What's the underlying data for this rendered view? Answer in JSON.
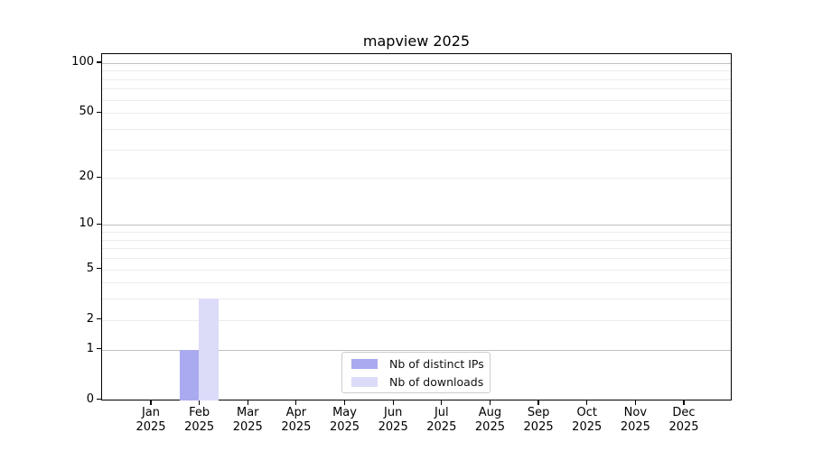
{
  "chart_data": {
    "type": "bar",
    "title": "mapview 2025",
    "categories": [
      "Jan",
      "Feb",
      "Mar",
      "Apr",
      "May",
      "Jun",
      "Jul",
      "Aug",
      "Sep",
      "Oct",
      "Nov",
      "Dec"
    ],
    "category_year": "2025",
    "series": [
      {
        "name": "Nb of distinct IPs",
        "color": "#aaaaf0",
        "values": [
          0,
          1,
          0,
          0,
          0,
          0,
          0,
          0,
          0,
          0,
          0,
          0
        ]
      },
      {
        "name": "Nb of downloads",
        "color": "#dcdcf8",
        "values": [
          0,
          3,
          0,
          0,
          0,
          0,
          0,
          0,
          0,
          0,
          0,
          0
        ]
      }
    ],
    "xlabel": "",
    "ylabel": "",
    "yscale": "log1p",
    "ylim": [
      0,
      115
    ],
    "y_ticks": [
      0,
      1,
      2,
      5,
      10,
      20,
      50,
      100
    ],
    "y_major_gridlines": [
      1,
      10,
      100
    ],
    "y_minor_gridlines": [
      2,
      3,
      4,
      5,
      6,
      7,
      8,
      9,
      20,
      30,
      40,
      50,
      60,
      70,
      80,
      90
    ],
    "grid": true,
    "legend_position": "lower center"
  },
  "colors": {
    "frame": "#000000",
    "major_grid": "#c0c0c0",
    "minor_grid": "#ececec",
    "background": "#ffffff"
  }
}
